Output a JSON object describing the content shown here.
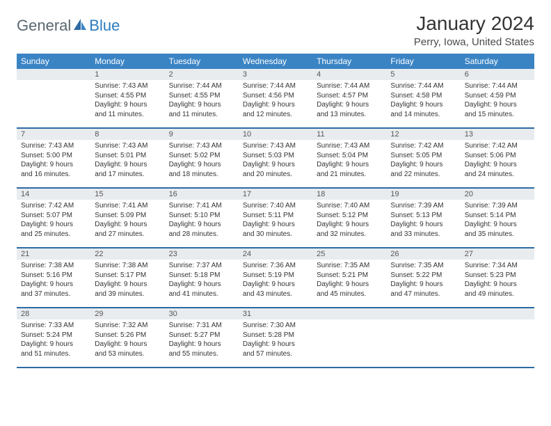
{
  "brand": {
    "part1": "General",
    "part2": "Blue"
  },
  "title": "January 2024",
  "location": "Perry, Iowa, United States",
  "colors": {
    "header_bg": "#3a84c4",
    "week_border": "#2d6aa3",
    "daynum_bg": "#e9ecef",
    "brand_blue": "#2b7bbf",
    "brand_gray": "#5a6770"
  },
  "dayNames": [
    "Sunday",
    "Monday",
    "Tuesday",
    "Wednesday",
    "Thursday",
    "Friday",
    "Saturday"
  ],
  "weeks": [
    [
      null,
      {
        "n": "1",
        "sr": "Sunrise: 7:43 AM",
        "ss": "Sunset: 4:55 PM",
        "dl": "Daylight: 9 hours and 11 minutes."
      },
      {
        "n": "2",
        "sr": "Sunrise: 7:44 AM",
        "ss": "Sunset: 4:55 PM",
        "dl": "Daylight: 9 hours and 11 minutes."
      },
      {
        "n": "3",
        "sr": "Sunrise: 7:44 AM",
        "ss": "Sunset: 4:56 PM",
        "dl": "Daylight: 9 hours and 12 minutes."
      },
      {
        "n": "4",
        "sr": "Sunrise: 7:44 AM",
        "ss": "Sunset: 4:57 PM",
        "dl": "Daylight: 9 hours and 13 minutes."
      },
      {
        "n": "5",
        "sr": "Sunrise: 7:44 AM",
        "ss": "Sunset: 4:58 PM",
        "dl": "Daylight: 9 hours and 14 minutes."
      },
      {
        "n": "6",
        "sr": "Sunrise: 7:44 AM",
        "ss": "Sunset: 4:59 PM",
        "dl": "Daylight: 9 hours and 15 minutes."
      }
    ],
    [
      {
        "n": "7",
        "sr": "Sunrise: 7:43 AM",
        "ss": "Sunset: 5:00 PM",
        "dl": "Daylight: 9 hours and 16 minutes."
      },
      {
        "n": "8",
        "sr": "Sunrise: 7:43 AM",
        "ss": "Sunset: 5:01 PM",
        "dl": "Daylight: 9 hours and 17 minutes."
      },
      {
        "n": "9",
        "sr": "Sunrise: 7:43 AM",
        "ss": "Sunset: 5:02 PM",
        "dl": "Daylight: 9 hours and 18 minutes."
      },
      {
        "n": "10",
        "sr": "Sunrise: 7:43 AM",
        "ss": "Sunset: 5:03 PM",
        "dl": "Daylight: 9 hours and 20 minutes."
      },
      {
        "n": "11",
        "sr": "Sunrise: 7:43 AM",
        "ss": "Sunset: 5:04 PM",
        "dl": "Daylight: 9 hours and 21 minutes."
      },
      {
        "n": "12",
        "sr": "Sunrise: 7:42 AM",
        "ss": "Sunset: 5:05 PM",
        "dl": "Daylight: 9 hours and 22 minutes."
      },
      {
        "n": "13",
        "sr": "Sunrise: 7:42 AM",
        "ss": "Sunset: 5:06 PM",
        "dl": "Daylight: 9 hours and 24 minutes."
      }
    ],
    [
      {
        "n": "14",
        "sr": "Sunrise: 7:42 AM",
        "ss": "Sunset: 5:07 PM",
        "dl": "Daylight: 9 hours and 25 minutes."
      },
      {
        "n": "15",
        "sr": "Sunrise: 7:41 AM",
        "ss": "Sunset: 5:09 PM",
        "dl": "Daylight: 9 hours and 27 minutes."
      },
      {
        "n": "16",
        "sr": "Sunrise: 7:41 AM",
        "ss": "Sunset: 5:10 PM",
        "dl": "Daylight: 9 hours and 28 minutes."
      },
      {
        "n": "17",
        "sr": "Sunrise: 7:40 AM",
        "ss": "Sunset: 5:11 PM",
        "dl": "Daylight: 9 hours and 30 minutes."
      },
      {
        "n": "18",
        "sr": "Sunrise: 7:40 AM",
        "ss": "Sunset: 5:12 PM",
        "dl": "Daylight: 9 hours and 32 minutes."
      },
      {
        "n": "19",
        "sr": "Sunrise: 7:39 AM",
        "ss": "Sunset: 5:13 PM",
        "dl": "Daylight: 9 hours and 33 minutes."
      },
      {
        "n": "20",
        "sr": "Sunrise: 7:39 AM",
        "ss": "Sunset: 5:14 PM",
        "dl": "Daylight: 9 hours and 35 minutes."
      }
    ],
    [
      {
        "n": "21",
        "sr": "Sunrise: 7:38 AM",
        "ss": "Sunset: 5:16 PM",
        "dl": "Daylight: 9 hours and 37 minutes."
      },
      {
        "n": "22",
        "sr": "Sunrise: 7:38 AM",
        "ss": "Sunset: 5:17 PM",
        "dl": "Daylight: 9 hours and 39 minutes."
      },
      {
        "n": "23",
        "sr": "Sunrise: 7:37 AM",
        "ss": "Sunset: 5:18 PM",
        "dl": "Daylight: 9 hours and 41 minutes."
      },
      {
        "n": "24",
        "sr": "Sunrise: 7:36 AM",
        "ss": "Sunset: 5:19 PM",
        "dl": "Daylight: 9 hours and 43 minutes."
      },
      {
        "n": "25",
        "sr": "Sunrise: 7:35 AM",
        "ss": "Sunset: 5:21 PM",
        "dl": "Daylight: 9 hours and 45 minutes."
      },
      {
        "n": "26",
        "sr": "Sunrise: 7:35 AM",
        "ss": "Sunset: 5:22 PM",
        "dl": "Daylight: 9 hours and 47 minutes."
      },
      {
        "n": "27",
        "sr": "Sunrise: 7:34 AM",
        "ss": "Sunset: 5:23 PM",
        "dl": "Daylight: 9 hours and 49 minutes."
      }
    ],
    [
      {
        "n": "28",
        "sr": "Sunrise: 7:33 AM",
        "ss": "Sunset: 5:24 PM",
        "dl": "Daylight: 9 hours and 51 minutes."
      },
      {
        "n": "29",
        "sr": "Sunrise: 7:32 AM",
        "ss": "Sunset: 5:26 PM",
        "dl": "Daylight: 9 hours and 53 minutes."
      },
      {
        "n": "30",
        "sr": "Sunrise: 7:31 AM",
        "ss": "Sunset: 5:27 PM",
        "dl": "Daylight: 9 hours and 55 minutes."
      },
      {
        "n": "31",
        "sr": "Sunrise: 7:30 AM",
        "ss": "Sunset: 5:28 PM",
        "dl": "Daylight: 9 hours and 57 minutes."
      },
      null,
      null,
      null
    ]
  ]
}
